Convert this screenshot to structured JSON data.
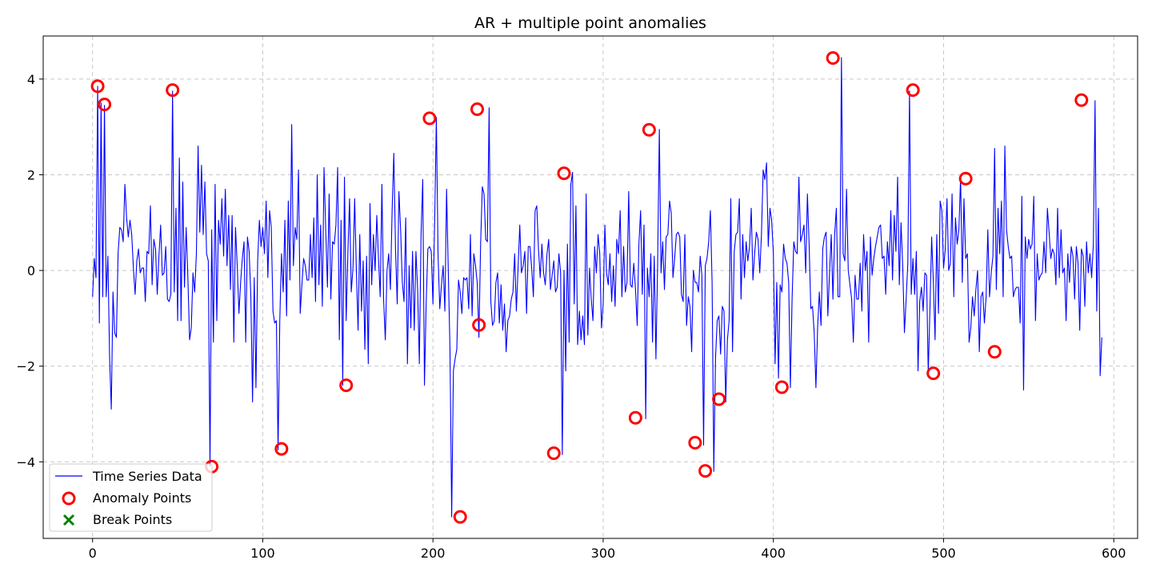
{
  "chart_data": {
    "type": "line",
    "title": "AR + multiple point anomalies",
    "xlabel": "",
    "ylabel": "",
    "xlim": [
      -29,
      614
    ],
    "ylim": [
      -5.6,
      4.9
    ],
    "xticks": [
      0,
      100,
      200,
      300,
      400,
      500,
      600
    ],
    "yticks": [
      -4,
      -2,
      0,
      2,
      4
    ],
    "xtick_labels": [
      "0",
      "100",
      "200",
      "300",
      "400",
      "500",
      "600"
    ],
    "ytick_labels": [
      "−4",
      "−2",
      "0",
      "2",
      "4"
    ],
    "grid": true,
    "legend_position": "lower-left",
    "legend": [
      {
        "label": "Time Series Data",
        "marker": "line",
        "color": "#0000ff"
      },
      {
        "label": "Anomaly Points",
        "marker": "circle",
        "color": "#ff0000"
      },
      {
        "label": "Break Points",
        "marker": "x",
        "color": "#008000"
      }
    ],
    "series": [
      {
        "name": "Time Series Data",
        "color": "#0000ff",
        "x_start": 0,
        "values": [
          -0.55,
          0.25,
          -0.15,
          3.85,
          -1.1,
          3.5,
          -0.55,
          3.45,
          -0.55,
          0.3,
          -1.8,
          -2.9,
          -0.45,
          -1.3,
          -1.4,
          0.35,
          0.9,
          0.85,
          0.6,
          1.8,
          1.1,
          0.7,
          1.05,
          0.75,
          0.05,
          -0.5,
          0.2,
          0.45,
          -0.05,
          0.05,
          0.05,
          -0.65,
          0.4,
          0.35,
          1.35,
          -0.3,
          0.65,
          0.45,
          -0.5,
          0.3,
          0.95,
          -0.1,
          -0.05,
          0.5,
          -0.6,
          -0.65,
          -0.5,
          3.75,
          -0.45,
          1.3,
          -1.05,
          2.35,
          -1.05,
          1.85,
          -0.35,
          0.9,
          -0.15,
          -1.45,
          -1.2,
          -0.05,
          -0.45,
          0.35,
          2.6,
          0.8,
          2.2,
          0.75,
          1.85,
          0.35,
          0.2,
          -4.1,
          0.85,
          -1.5,
          1.8,
          -1.05,
          1.05,
          0.55,
          1.5,
          0.3,
          1.7,
          0.1,
          1.15,
          -0.4,
          1.15,
          -1.5,
          0.9,
          0.1,
          -0.9,
          -0.25,
          0.25,
          0.6,
          -1.5,
          0.7,
          0.4,
          -0.55,
          -2.75,
          -0.15,
          -2.45,
          0.2,
          1.05,
          0.5,
          0.9,
          0.35,
          1.45,
          -0.15,
          1.25,
          0.9,
          -0.85,
          -1.1,
          -1.05,
          -3.75,
          -1.05,
          0.35,
          -0.45,
          1.05,
          -0.95,
          1.45,
          -0.2,
          3.05,
          0.1,
          0.9,
          0.65,
          2.1,
          -0.9,
          -0.3,
          0.25,
          0.1,
          -0.2,
          -0.2,
          0.75,
          -0.15,
          1.1,
          -0.65,
          2.0,
          -0.3,
          0.95,
          -0.75,
          2.15,
          0.85,
          -0.35,
          1.6,
          -0.6,
          0.6,
          0.55,
          0.95,
          2.15,
          -1.45,
          1.05,
          -2.4,
          1.95,
          -1.05,
          0.35,
          1.5,
          -0.45,
          0.05,
          1.5,
          0.0,
          -1.25,
          0.75,
          -0.85,
          0.2,
          -1.65,
          0.3,
          -1.95,
          1.4,
          -0.3,
          0.75,
          0.0,
          1.15,
          0.25,
          -0.55,
          1.8,
          -0.6,
          -1.45,
          0.0,
          0.35,
          -0.4,
          1.25,
          2.45,
          0.45,
          -0.7,
          1.65,
          0.85,
          -0.25,
          -0.65,
          1.1,
          -1.95,
          0.1,
          -1.2,
          0.4,
          -1.25,
          0.4,
          -0.4,
          -1.95,
          0.75,
          1.9,
          -2.4,
          -0.7,
          0.45,
          0.5,
          0.4,
          -0.7,
          1.0,
          3.2,
          0.3,
          -0.8,
          -0.3,
          0.1,
          -0.85,
          1.7,
          0.0,
          -1.65,
          -5.15,
          -2.1,
          -1.85,
          -1.65,
          -0.2,
          -0.45,
          -0.9,
          -0.15,
          -0.2,
          -0.15,
          -0.8,
          0.75,
          -0.95,
          0.35,
          0.1,
          -0.25,
          -1.4,
          0.55,
          1.75,
          1.6,
          0.65,
          0.6,
          3.4,
          -0.65,
          -1.15,
          -1.05,
          -0.25,
          -0.05,
          -1.1,
          -0.3,
          -1.25,
          -0.7,
          -1.7,
          -1.05,
          -0.95,
          -0.6,
          -0.45,
          0.35,
          -0.85,
          0.05,
          0.95,
          -0.05,
          0.1,
          0.4,
          -0.9,
          0.5,
          0.5,
          0.05,
          -0.55,
          1.25,
          1.35,
          0.45,
          -0.15,
          0.55,
          -0.05,
          -0.3,
          0.35,
          0.65,
          -0.4,
          -0.1,
          0.2,
          -0.45,
          -0.35,
          0.35,
          -0.05,
          -3.85,
          0.0,
          -2.1,
          0.55,
          -1.5,
          1.8,
          2.05,
          -0.7,
          1.35,
          -1.55,
          -0.85,
          -1.45,
          -0.95,
          -1.55,
          1.6,
          -1.35,
          0.05,
          -0.6,
          -1.05,
          0.5,
          -0.05,
          0.75,
          0.35,
          -1.2,
          -0.7,
          0.95,
          -0.05,
          -0.3,
          0.35,
          -0.65,
          0.1,
          -0.75,
          0.65,
          0.35,
          1.25,
          -0.55,
          0.5,
          -0.45,
          -0.25,
          1.65,
          -0.3,
          -0.35,
          0.15,
          -0.4,
          -1.15,
          0.55,
          1.25,
          -0.5,
          0.95,
          -3.1,
          0.05,
          -0.55,
          0.35,
          -1.5,
          0.3,
          -1.85,
          0.15,
          2.95,
          -0.05,
          0.6,
          -0.4,
          0.7,
          0.75,
          1.45,
          1.2,
          -0.15,
          0.25,
          0.75,
          0.8,
          0.7,
          -0.5,
          -0.65,
          0.75,
          -1.15,
          -0.55,
          -0.75,
          -1.7,
          0.0,
          -0.25,
          -0.25,
          -0.45,
          0.3,
          -0.1,
          -3.65,
          0.1,
          0.25,
          0.6,
          1.25,
          -0.25,
          -4.2,
          -1.85,
          -1.05,
          -0.95,
          -1.75,
          -0.75,
          -0.85,
          -2.75,
          -1.45,
          -1.05,
          1.5,
          -1.7,
          0.4,
          0.75,
          0.8,
          1.5,
          -0.6,
          0.75,
          -0.15,
          0.6,
          0.2,
          0.5,
          1.3,
          -0.2,
          0.35,
          0.8,
          0.65,
          -0.05,
          0.75,
          2.1,
          1.9,
          2.25,
          0.5,
          1.3,
          1.05,
          0.35,
          -1.95,
          -0.25,
          -2.25,
          -0.3,
          -0.45,
          0.55,
          0.25,
          0.15,
          -0.25,
          -2.45,
          -0.6,
          0.6,
          0.4,
          0.35,
          1.95,
          0.6,
          0.75,
          0.95,
          -0.05,
          1.6,
          0.55,
          -0.8,
          -0.75,
          -1.3,
          -2.45,
          -1.2,
          -0.45,
          -1.15,
          0.45,
          0.7,
          0.8,
          -0.95,
          -0.05,
          0.75,
          -0.6,
          0.75,
          1.3,
          -0.55,
          -0.55,
          4.45,
          0.35,
          0.2,
          1.7,
          0.0,
          -0.3,
          -0.6,
          -1.5,
          -0.1,
          -0.6,
          -0.6,
          0.15,
          -0.85,
          0.75,
          0.0,
          0.4,
          -1.5,
          0.7,
          -0.1,
          0.25,
          0.5,
          0.7,
          0.9,
          0.95,
          0.25,
          0.3,
          -0.5,
          0.6,
          0.1,
          1.25,
          -0.2,
          1.15,
          0.4,
          1.95,
          -0.3,
          1.0,
          0.1,
          -1.3,
          -0.6,
          0.15,
          3.75,
          -0.5,
          0.25,
          -0.5,
          0.4,
          -2.1,
          -0.65,
          -0.35,
          -0.85,
          -0.05,
          -0.1,
          -2.15,
          -0.8,
          0.7,
          -0.25,
          -1.45,
          0.75,
          -0.9,
          1.45,
          1.25,
          0.05,
          0.45,
          1.5,
          0.0,
          0.15,
          1.6,
          -0.55,
          1.1,
          0.55,
          0.85,
          1.95,
          -0.25,
          1.5,
          0.25,
          0.35,
          -1.5,
          -1.2,
          -0.55,
          -0.95,
          -0.4,
          0.0,
          -1.7,
          -0.55,
          -0.45,
          -1.1,
          -0.55,
          0.85,
          -0.55,
          -0.05,
          0.3,
          2.55,
          -0.4,
          1.3,
          0.35,
          1.45,
          -0.55,
          2.6,
          0.85,
          0.5,
          0.25,
          0.3,
          -0.55,
          -0.4,
          -0.35,
          -0.35,
          -1.1,
          1.55,
          -2.5,
          0.7,
          0.25,
          0.65,
          0.45,
          0.55,
          1.55,
          -1.05,
          0.35,
          -0.2,
          -0.1,
          -0.05,
          0.6,
          -0.05,
          1.3,
          0.8,
          0.25,
          0.45,
          0.35,
          -0.3,
          1.3,
          -0.15,
          0.85,
          -0.05,
          0.05,
          -1.05,
          0.35,
          -0.25,
          0.5,
          0.3,
          -0.6,
          0.5,
          0.15,
          -1.25,
          0.45,
          0.3,
          -0.75,
          0.6,
          -0.05,
          0.35,
          -0.15,
          0.55,
          3.55,
          -0.85,
          1.3,
          -2.2,
          -1.4
        ]
      }
    ],
    "anomalies": {
      "name": "Anomaly Points",
      "color": "#ff0000",
      "x": [
        3,
        7,
        47,
        70,
        111,
        149,
        198,
        216,
        226,
        227,
        271,
        277,
        319,
        327,
        354,
        360,
        368,
        405,
        435,
        482,
        494,
        513,
        530,
        581
      ],
      "y": [
        3.85,
        3.47,
        3.77,
        -4.1,
        -3.73,
        -2.4,
        3.18,
        -5.15,
        3.37,
        -1.14,
        -3.82,
        2.03,
        -3.08,
        2.94,
        -3.6,
        -4.19,
        -2.69,
        -2.44,
        4.44,
        3.77,
        -2.15,
        1.92,
        -1.7,
        3.56
      ]
    },
    "break_points": {
      "name": "Break Points",
      "color": "#008000",
      "x": [],
      "y": []
    }
  }
}
